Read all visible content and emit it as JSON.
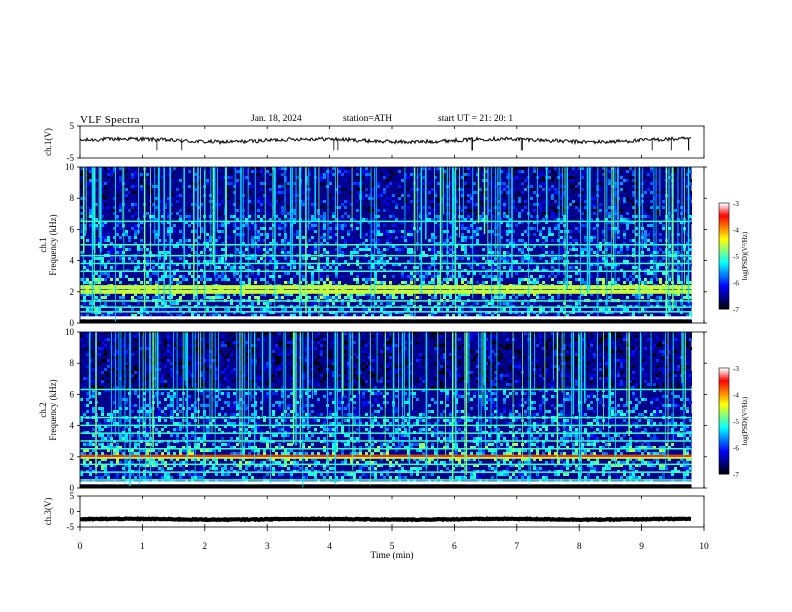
{
  "header": {
    "title": "VLF Spectra",
    "date": "Jan. 18, 2024",
    "station": "station=ATH",
    "start": "start UT = 21: 20: 1"
  },
  "colors": {
    "waveform": "#000000",
    "colormap": [
      "#000000",
      "#00007f",
      "#0000ff",
      "#0080ff",
      "#00ffff",
      "#7fff7f",
      "#ffff00",
      "#ff8000",
      "#ff0000",
      "#ffffff"
    ]
  },
  "chart_data": [
    {
      "type": "line",
      "panel": "ch1-waveform",
      "ylabel": "ch.1(V)",
      "ylim": [
        -5,
        5
      ],
      "yticks": [
        "5",
        "-5"
      ],
      "xlim": [
        0,
        10
      ],
      "description_values": {
        "baseline_v": 0.5,
        "noise_amplitude_v": 1.2
      }
    },
    {
      "type": "heatmap",
      "panel": "ch1-spectrogram",
      "ylabel": "ch.1\nFrequency (kHz)",
      "ylabel_line1": "ch.1",
      "ylabel_line2": "Frequency (kHz)",
      "ylim": [
        0,
        10
      ],
      "yticks": [
        "0",
        "2",
        "4",
        "6",
        "8",
        "10"
      ],
      "xlim": [
        0,
        10
      ],
      "bands_khz": [
        0.3,
        0.7,
        1.0,
        1.4,
        2.0,
        2.3,
        3.3,
        3.8,
        4.3,
        5.0,
        6.5
      ],
      "colorbar": {
        "label": "log(PSD)(V²/Hz)",
        "ticks": [
          "-3",
          "-4",
          "-5",
          "-6",
          "-7"
        ],
        "range": [
          -7,
          -3
        ]
      }
    },
    {
      "type": "heatmap",
      "panel": "ch2-spectrogram",
      "ylabel": "ch.2\nFrequency (kHz)",
      "ylabel_line1": "ch.2",
      "ylabel_line2": "Frequency (kHz)",
      "ylim": [
        0,
        10
      ],
      "yticks": [
        "0",
        "2",
        "4",
        "6",
        "8",
        "10"
      ],
      "xlim": [
        0,
        10
      ],
      "bands_khz": [
        0.5,
        1.0,
        1.5,
        2.0,
        2.5,
        3.0,
        3.5,
        4.0,
        4.5,
        6.3
      ],
      "colorbar": {
        "label": "log(PSD)(V²/Hz)",
        "ticks": [
          "-3",
          "-4",
          "-5",
          "-6",
          "-7"
        ],
        "range": [
          -7,
          -3
        ]
      }
    },
    {
      "type": "line",
      "panel": "ch3-waveform",
      "ylabel": "ch.3(V)",
      "ylim": [
        -5,
        5
      ],
      "yticks": [
        "5",
        "0",
        "-5"
      ],
      "xlim": [
        0,
        10
      ],
      "description_values": {
        "baseline_v": -2.5,
        "noise_amplitude_v": 0.3
      }
    }
  ],
  "xaxis": {
    "label": "Time (min)",
    "ticks": [
      "0",
      "1",
      "2",
      "3",
      "4",
      "5",
      "6",
      "7",
      "8",
      "9",
      "10"
    ],
    "range": [
      0,
      10
    ]
  }
}
